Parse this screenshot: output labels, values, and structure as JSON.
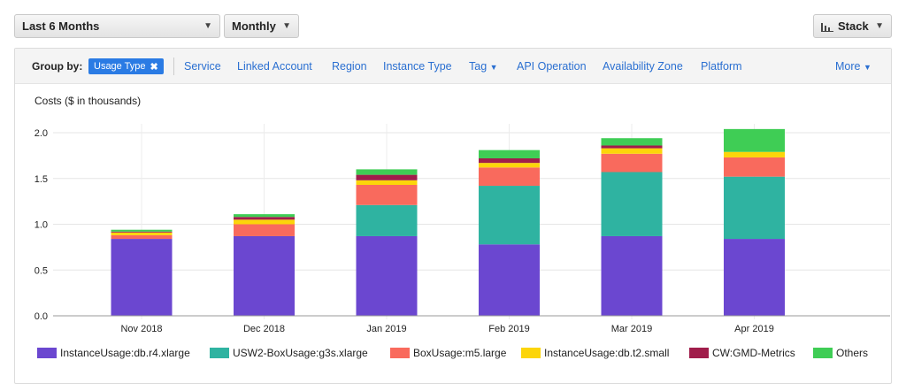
{
  "toolbar": {
    "range_label": "Last 6 Months",
    "granularity_label": "Monthly",
    "chart_style_label": "Stack"
  },
  "groupby": {
    "label": "Group by:",
    "active_chip": "Usage Type",
    "options": [
      "Service",
      "Linked Account",
      "Region",
      "Instance Type",
      "Tag",
      "API Operation",
      "Availability Zone",
      "Platform"
    ],
    "more_label": "More"
  },
  "colors": {
    "InstanceUsage:db.r4.xlarge": "#6b47d0",
    "USW2-BoxUsage:g3s.xlarge": "#2fb3a1",
    "BoxUsage:m5.large": "#f96a5d",
    "InstanceUsage:db.t2.small": "#fcd50a",
    "CW:GMD-Metrics": "#a01d4b",
    "Others": "#3fcd55"
  },
  "chart_data": {
    "type": "bar",
    "stacked": true,
    "ylabel": "Costs ($ in thousands)",
    "ylim": [
      0,
      2.0
    ],
    "yticks": [
      "0.0",
      "0.5",
      "1.0",
      "1.5",
      "2.0"
    ],
    "grid": true,
    "legend_position": "bottom",
    "categories": [
      "Nov 2018",
      "Dec 2018",
      "Jan 2019",
      "Feb 2019",
      "Mar 2019",
      "Apr 2019"
    ],
    "series": [
      {
        "name": "InstanceUsage:db.r4.xlarge",
        "values": [
          0.84,
          0.87,
          0.87,
          0.78,
          0.87,
          0.84
        ]
      },
      {
        "name": "USW2-BoxUsage:g3s.xlarge",
        "values": [
          0,
          0,
          0.34,
          0.64,
          0.7,
          0.68
        ]
      },
      {
        "name": "BoxUsage:m5.large",
        "values": [
          0.04,
          0.13,
          0.22,
          0.2,
          0.2,
          0.21
        ]
      },
      {
        "name": "InstanceUsage:db.t2.small",
        "values": [
          0.03,
          0.05,
          0.05,
          0.05,
          0.06,
          0.06
        ]
      },
      {
        "name": "CW:GMD-Metrics",
        "values": [
          0.01,
          0.03,
          0.06,
          0.05,
          0.03,
          0
        ]
      },
      {
        "name": "Others",
        "values": [
          0.02,
          0.03,
          0.06,
          0.09,
          0.08,
          0.25
        ]
      }
    ]
  }
}
